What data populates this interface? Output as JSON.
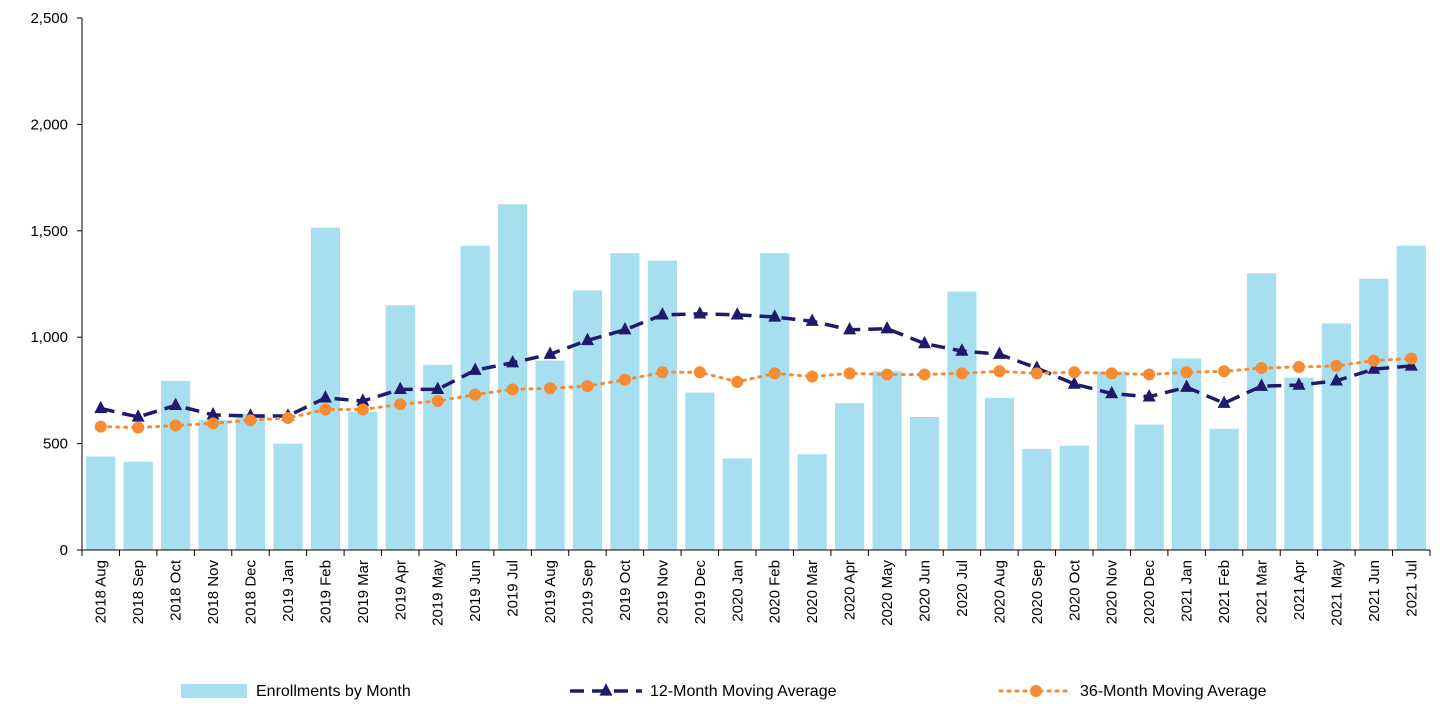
{
  "chart_data": {
    "type": "bar",
    "categories": [
      "2018 Aug",
      "2018 Sep",
      "2018 Oct",
      "2018 Nov",
      "2018 Dec",
      "2019 Jan",
      "2019 Feb",
      "2019 Mar",
      "2019 Apr",
      "2019 May",
      "2019 Jun",
      "2019 Jul",
      "2019 Aug",
      "2019 Sep",
      "2019 Oct",
      "2019 Nov",
      "2019 Dec",
      "2020 Jan",
      "2020 Feb",
      "2020 Mar",
      "2020 Apr",
      "2020 May",
      "2020 Jun",
      "2020 Jul",
      "2020 Aug",
      "2020 Sep",
      "2020 Oct",
      "2020 Nov",
      "2020 Dec",
      "2021 Jan",
      "2021 Feb",
      "2021 Mar",
      "2021 Apr",
      "2021 May",
      "2021 Jun",
      "2021 Jul"
    ],
    "ylim": [
      0,
      2500
    ],
    "yticks": [
      0,
      500,
      1000,
      1500,
      2000,
      2500
    ],
    "ytick_labels": [
      "0",
      "500",
      "1,000",
      "1,500",
      "2,000",
      "2,500"
    ],
    "grid": false,
    "legend_position": "bottom",
    "series": [
      {
        "name": "Enrollments by Month",
        "kind": "bar",
        "color": "#a8dff0",
        "values": [
          440,
          415,
          795,
          610,
          640,
          500,
          1515,
          650,
          1150,
          870,
          1430,
          1625,
          890,
          1220,
          1395,
          1360,
          740,
          430,
          1395,
          450,
          690,
          840,
          625,
          1215,
          715,
          475,
          490,
          840,
          590,
          900,
          570,
          1300,
          810,
          1065,
          1275,
          1430
        ]
      },
      {
        "name": "12-Month Moving Average",
        "kind": "line",
        "style": "dashed",
        "marker": "triangle",
        "color": "#1f1a6b",
        "values": [
          665,
          625,
          680,
          635,
          630,
          630,
          715,
          700,
          755,
          755,
          845,
          880,
          920,
          985,
          1035,
          1105,
          1110,
          1105,
          1095,
          1075,
          1035,
          1040,
          970,
          935,
          920,
          855,
          780,
          735,
          720,
          765,
          690,
          770,
          775,
          795,
          850,
          865
        ]
      },
      {
        "name": "36-Month Moving Average",
        "kind": "line",
        "style": "dotted",
        "marker": "circle",
        "color": "#f58b33",
        "values": [
          580,
          575,
          585,
          595,
          610,
          620,
          660,
          660,
          685,
          700,
          730,
          755,
          760,
          770,
          800,
          835,
          835,
          790,
          830,
          815,
          830,
          825,
          825,
          830,
          840,
          830,
          835,
          830,
          825,
          835,
          840,
          855,
          860,
          865,
          890,
          900
        ]
      }
    ]
  }
}
